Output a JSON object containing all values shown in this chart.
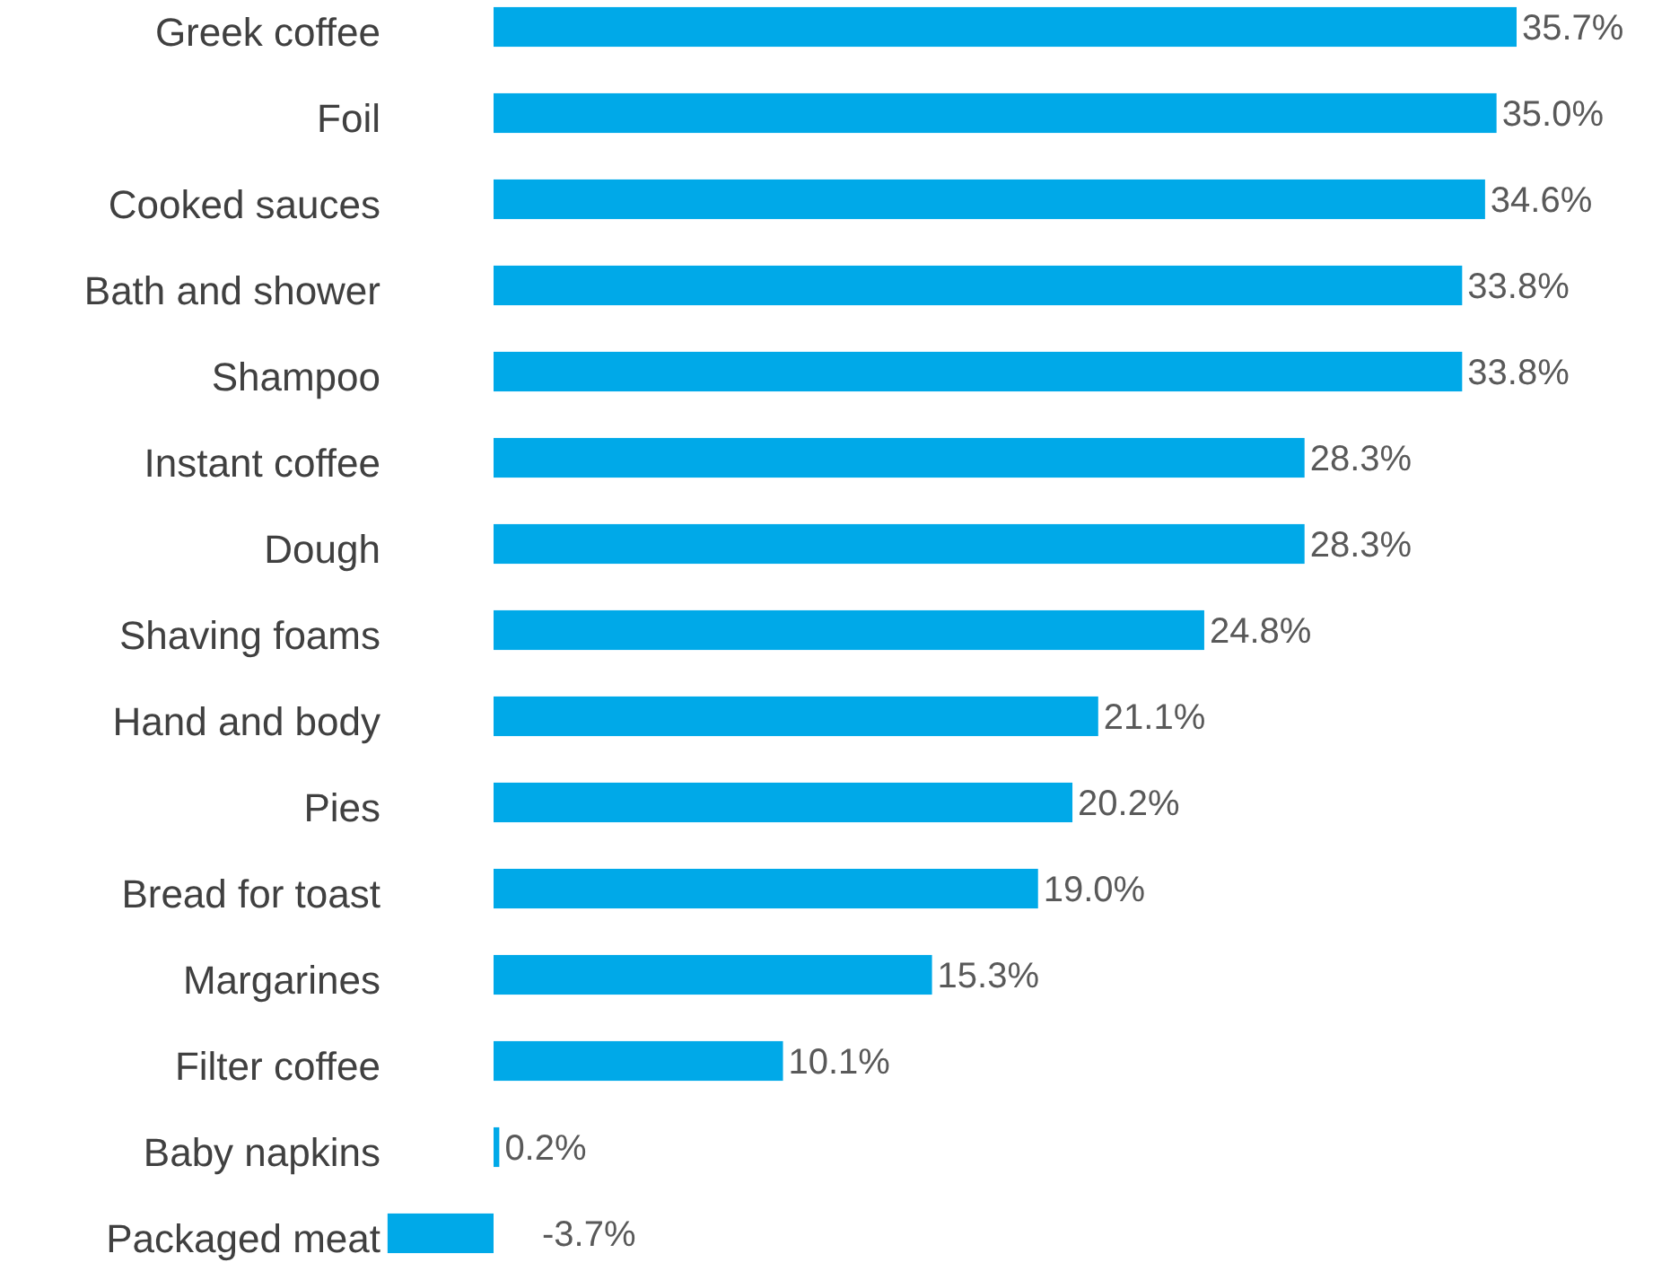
{
  "chart_data": {
    "type": "bar",
    "orientation": "horizontal",
    "color": "#00a9e8",
    "value_labels": [
      "35.7%",
      "35.0%",
      "34.6%",
      "33.8%",
      "33.8%",
      "28.3%",
      "28.3%",
      "24.8%",
      "21.1%",
      "20.2%",
      "19.0%",
      "15.3%",
      "10.1%",
      "0.2%",
      "-3.7%"
    ],
    "categories": [
      "Greek coffee",
      "Foil",
      "Cooked sauces",
      "Bath and shower",
      "Shampoo",
      "Instant coffee",
      "Dough",
      "Shaving foams",
      "Hand and body",
      "Pies",
      "Bread for toast",
      "Margarines",
      "Filter coffee",
      "Baby napkins",
      "Packaged meat"
    ],
    "values": [
      35.7,
      35.0,
      34.6,
      33.8,
      33.8,
      28.3,
      28.3,
      24.8,
      21.1,
      20.2,
      19.0,
      15.3,
      10.1,
      0.2,
      -3.7
    ]
  }
}
